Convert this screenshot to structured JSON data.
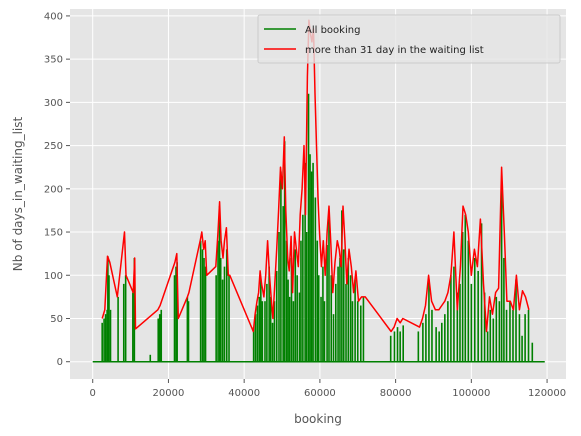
{
  "chart_data": {
    "type": "line",
    "style": "ggplot",
    "xlabel": "booking",
    "ylabel": "Nb of days_in_waiting_list",
    "xlim": [
      -6000,
      125000
    ],
    "ylim": [
      -20,
      408
    ],
    "xticks": [
      0,
      20000,
      40000,
      60000,
      80000,
      100000,
      120000
    ],
    "yticks": [
      0,
      50,
      100,
      150,
      200,
      250,
      300,
      350,
      400
    ],
    "grid": true,
    "legend": {
      "placement": "top-right"
    },
    "series": [
      {
        "name": "All booking",
        "color": "#008000",
        "baseline": {
          "x": [
            0,
            119390
          ],
          "y": [
            0,
            0
          ]
        },
        "spikes": [
          [
            2500,
            45
          ],
          [
            3000,
            50
          ],
          [
            3400,
            55
          ],
          [
            3800,
            60
          ],
          [
            4000,
            122
          ],
          [
            4300,
            100
          ],
          [
            4700,
            60
          ],
          [
            6700,
            75
          ],
          [
            8200,
            90
          ],
          [
            8700,
            100
          ],
          [
            10600,
            80
          ],
          [
            11000,
            120
          ],
          [
            15200,
            8
          ],
          [
            17300,
            50
          ],
          [
            17700,
            55
          ],
          [
            18100,
            60
          ],
          [
            21600,
            100
          ],
          [
            22000,
            110
          ],
          [
            22300,
            115
          ],
          [
            25000,
            75
          ],
          [
            25300,
            70
          ],
          [
            28500,
            140
          ],
          [
            29000,
            130
          ],
          [
            29400,
            120
          ],
          [
            29800,
            110
          ],
          [
            32600,
            100
          ],
          [
            33100,
            140
          ],
          [
            33500,
            180
          ],
          [
            33800,
            120
          ],
          [
            34300,
            95
          ],
          [
            34800,
            110
          ],
          [
            35400,
            130
          ],
          [
            36000,
            100
          ],
          [
            42500,
            40
          ],
          [
            43000,
            55
          ],
          [
            43500,
            65
          ],
          [
            44000,
            75
          ],
          [
            44400,
            95
          ],
          [
            44800,
            70
          ],
          [
            45500,
            70
          ],
          [
            46000,
            90
          ],
          [
            46600,
            110
          ],
          [
            47000,
            75
          ],
          [
            47500,
            45
          ],
          [
            48000,
            70
          ],
          [
            48600,
            105
          ],
          [
            49200,
            150
          ],
          [
            49700,
            220
          ],
          [
            50300,
            180
          ],
          [
            50700,
            255
          ],
          [
            51200,
            140
          ],
          [
            51600,
            95
          ],
          [
            52000,
            75
          ],
          [
            52500,
            120
          ],
          [
            53000,
            70
          ],
          [
            53500,
            130
          ],
          [
            54000,
            100
          ],
          [
            54600,
            80
          ],
          [
            55000,
            140
          ],
          [
            55500,
            170
          ],
          [
            56100,
            230
          ],
          [
            56500,
            150
          ],
          [
            57000,
            310
          ],
          [
            57400,
            240
          ],
          [
            57800,
            220
          ],
          [
            58200,
            230
          ],
          [
            58800,
            190
          ],
          [
            59300,
            140
          ],
          [
            59700,
            100
          ],
          [
            60300,
            75
          ],
          [
            60800,
            110
          ],
          [
            61200,
            70
          ],
          [
            61900,
            135
          ],
          [
            62400,
            165
          ],
          [
            63000,
            100
          ],
          [
            63600,
            55
          ],
          [
            64200,
            90
          ],
          [
            64800,
            110
          ],
          [
            65300,
            120
          ],
          [
            65800,
            175
          ],
          [
            66300,
            130
          ],
          [
            66900,
            90
          ],
          [
            67500,
            120
          ],
          [
            68100,
            100
          ],
          [
            68600,
            70
          ],
          [
            69300,
            95
          ],
          [
            70000,
            70
          ],
          [
            70800,
            65
          ],
          [
            71500,
            75
          ],
          [
            78700,
            30
          ],
          [
            79700,
            35
          ],
          [
            80500,
            40
          ],
          [
            81200,
            35
          ],
          [
            82000,
            42
          ],
          [
            86000,
            35
          ],
          [
            87200,
            45
          ],
          [
            88000,
            55
          ],
          [
            88800,
            95
          ],
          [
            89600,
            60
          ],
          [
            90700,
            40
          ],
          [
            91500,
            35
          ],
          [
            92200,
            45
          ],
          [
            93000,
            55
          ],
          [
            93800,
            70
          ],
          [
            94600,
            100
          ],
          [
            95400,
            110
          ],
          [
            96300,
            80
          ],
          [
            97000,
            90
          ],
          [
            97700,
            150
          ],
          [
            98400,
            170
          ],
          [
            99200,
            140
          ],
          [
            100000,
            90
          ],
          [
            100900,
            120
          ],
          [
            101800,
            105
          ],
          [
            102700,
            160
          ],
          [
            103500,
            80
          ],
          [
            104300,
            35
          ],
          [
            105000,
            60
          ],
          [
            105800,
            50
          ],
          [
            106600,
            75
          ],
          [
            107400,
            70
          ],
          [
            108000,
            200
          ],
          [
            108600,
            120
          ],
          [
            109300,
            60
          ],
          [
            110200,
            70
          ],
          [
            111000,
            60
          ],
          [
            111800,
            95
          ],
          [
            112700,
            55
          ],
          [
            113400,
            30
          ],
          [
            114200,
            55
          ],
          [
            115100,
            60
          ],
          [
            116100,
            22
          ]
        ]
      },
      {
        "name": "more than 31 day in the waiting list",
        "color": "#ff0000",
        "points": [
          [
            2500,
            50
          ],
          [
            3200,
            60
          ],
          [
            3900,
            122
          ],
          [
            4500,
            115
          ],
          [
            6500,
            75
          ],
          [
            8400,
            150
          ],
          [
            8800,
            100
          ],
          [
            10700,
            80
          ],
          [
            11100,
            120
          ],
          [
            11300,
            38
          ],
          [
            17200,
            60
          ],
          [
            17800,
            65
          ],
          [
            21700,
            115
          ],
          [
            22200,
            125
          ],
          [
            22600,
            50
          ],
          [
            25000,
            75
          ],
          [
            25400,
            80
          ],
          [
            28400,
            140
          ],
          [
            28800,
            150
          ],
          [
            29300,
            130
          ],
          [
            29700,
            140
          ],
          [
            30100,
            100
          ],
          [
            32500,
            110
          ],
          [
            33100,
            150
          ],
          [
            33500,
            185
          ],
          [
            33900,
            140
          ],
          [
            34400,
            120
          ],
          [
            34800,
            140
          ],
          [
            35300,
            155
          ],
          [
            35800,
            100
          ],
          [
            36200,
            100
          ],
          [
            42400,
            35
          ],
          [
            42900,
            55
          ],
          [
            43400,
            70
          ],
          [
            43800,
            80
          ],
          [
            44200,
            105
          ],
          [
            44600,
            90
          ],
          [
            45200,
            75
          ],
          [
            45700,
            100
          ],
          [
            46200,
            140
          ],
          [
            46700,
            100
          ],
          [
            47100,
            75
          ],
          [
            47600,
            50
          ],
          [
            48100,
            90
          ],
          [
            48600,
            130
          ],
          [
            49100,
            175
          ],
          [
            49600,
            225
          ],
          [
            50100,
            200
          ],
          [
            50600,
            260
          ],
          [
            51000,
            175
          ],
          [
            51500,
            120
          ],
          [
            51900,
            105
          ],
          [
            52400,
            145
          ],
          [
            52800,
            80
          ],
          [
            53300,
            150
          ],
          [
            53800,
            130
          ],
          [
            54300,
            110
          ],
          [
            54800,
            170
          ],
          [
            55300,
            200
          ],
          [
            55800,
            250
          ],
          [
            56200,
            170
          ],
          [
            56700,
            330
          ],
          [
            57100,
            395
          ],
          [
            57500,
            380
          ],
          [
            57900,
            370
          ],
          [
            58300,
            385
          ],
          [
            58700,
            310
          ],
          [
            59100,
            250
          ],
          [
            59500,
            190
          ],
          [
            59900,
            150
          ],
          [
            60400,
            110
          ],
          [
            60900,
            140
          ],
          [
            61400,
            100
          ],
          [
            61900,
            150
          ],
          [
            62400,
            180
          ],
          [
            62900,
            135
          ],
          [
            63400,
            80
          ],
          [
            64000,
            115
          ],
          [
            64600,
            140
          ],
          [
            65100,
            130
          ],
          [
            65600,
            110
          ],
          [
            66100,
            180
          ],
          [
            66600,
            140
          ],
          [
            67100,
            90
          ],
          [
            67700,
            130
          ],
          [
            68300,
            110
          ],
          [
            68900,
            80
          ],
          [
            69500,
            105
          ],
          [
            70200,
            70
          ],
          [
            71000,
            75
          ],
          [
            72000,
            75
          ],
          [
            78800,
            35
          ],
          [
            79600,
            40
          ],
          [
            80400,
            50
          ],
          [
            81200,
            45
          ],
          [
            81900,
            50
          ],
          [
            86300,
            40
          ],
          [
            87100,
            50
          ],
          [
            87900,
            65
          ],
          [
            88700,
            100
          ],
          [
            89500,
            70
          ],
          [
            90500,
            60
          ],
          [
            91400,
            60
          ],
          [
            92200,
            65
          ],
          [
            93000,
            70
          ],
          [
            93800,
            80
          ],
          [
            94600,
            100
          ],
          [
            95400,
            150
          ],
          [
            96300,
            60
          ],
          [
            97100,
            110
          ],
          [
            97800,
            180
          ],
          [
            98500,
            170
          ],
          [
            99200,
            150
          ],
          [
            100000,
            100
          ],
          [
            100800,
            130
          ],
          [
            101600,
            110
          ],
          [
            102400,
            165
          ],
          [
            103200,
            90
          ],
          [
            104000,
            35
          ],
          [
            104800,
            75
          ],
          [
            105600,
            55
          ],
          [
            106400,
            80
          ],
          [
            107200,
            85
          ],
          [
            108000,
            225
          ],
          [
            108700,
            150
          ],
          [
            109400,
            70
          ],
          [
            110300,
            70
          ],
          [
            111100,
            60
          ],
          [
            111900,
            100
          ],
          [
            112700,
            60
          ],
          [
            113500,
            82
          ],
          [
            114300,
            75
          ],
          [
            115200,
            60
          ]
        ]
      }
    ]
  }
}
